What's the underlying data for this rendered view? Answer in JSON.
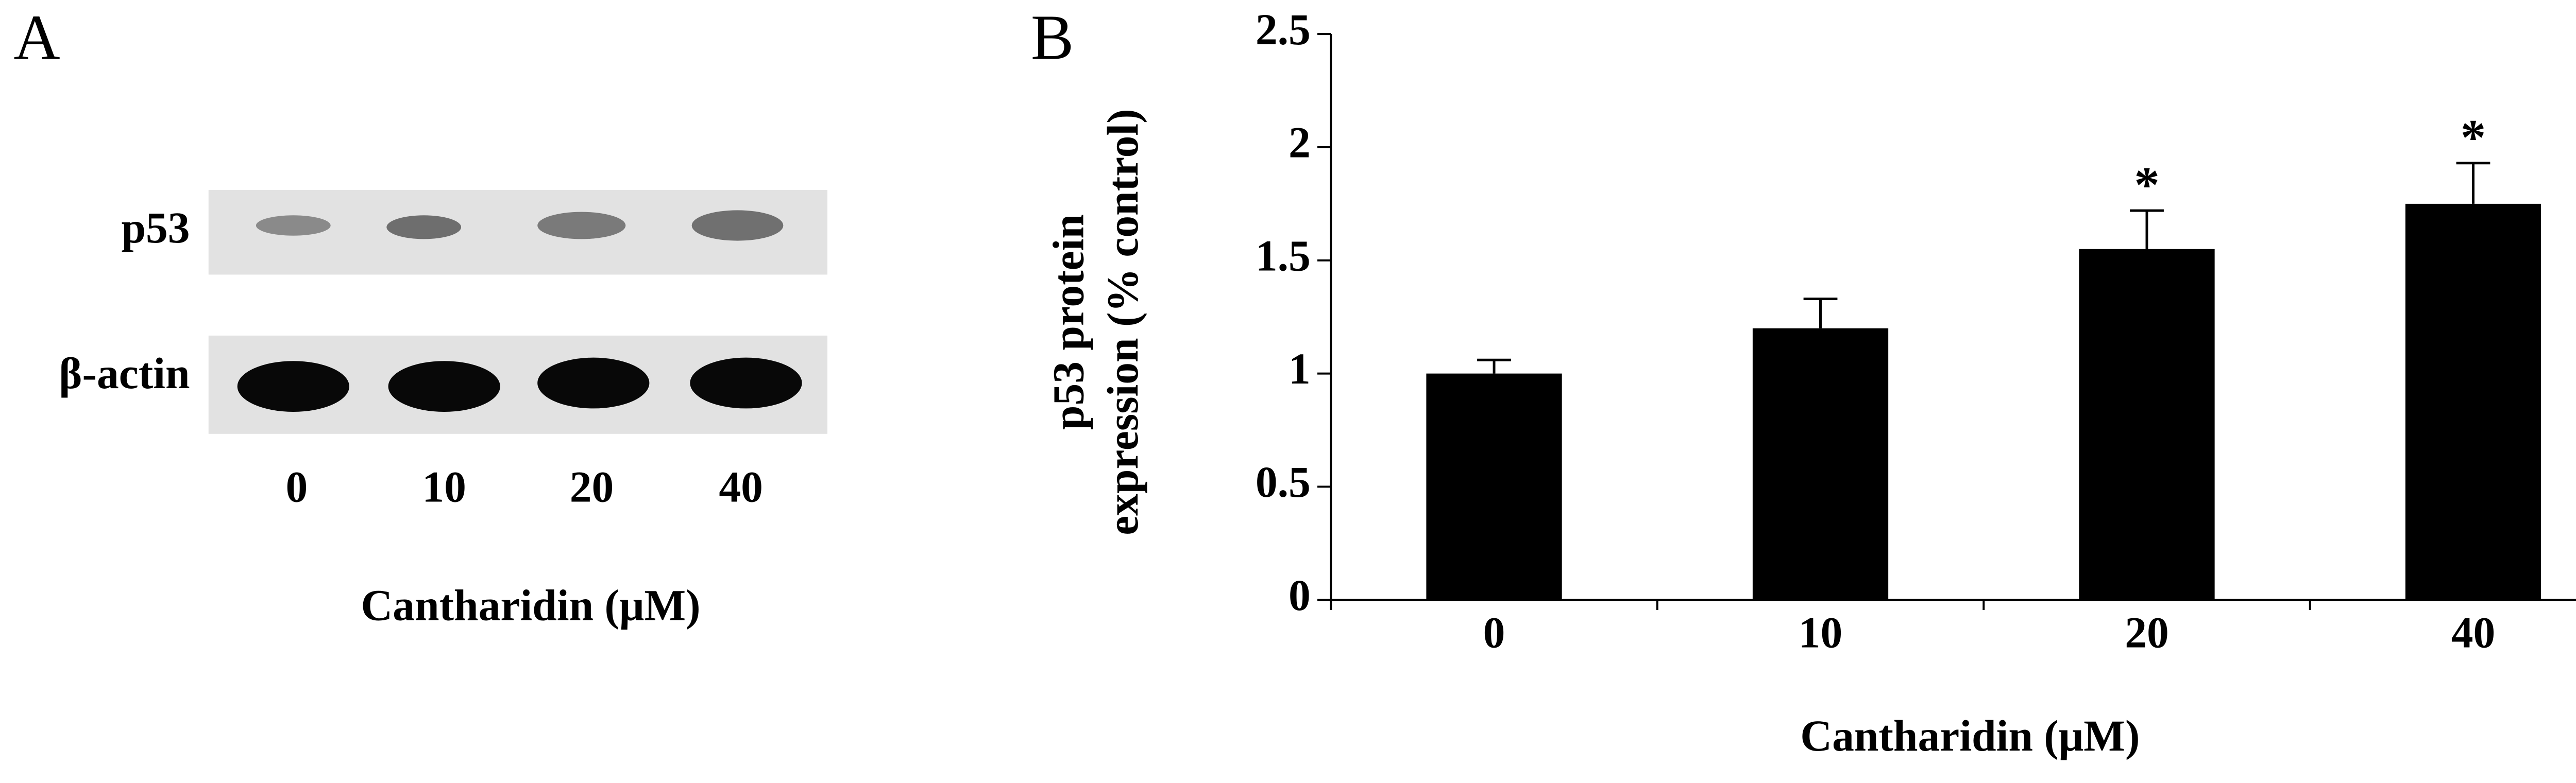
{
  "panel_a": {
    "panel_label": "A",
    "rows": [
      "p53",
      "β-actin"
    ],
    "lanes": [
      "0",
      "10",
      "20",
      "40"
    ],
    "xlabel": "Cantharidin (μM)"
  },
  "chart_data": {
    "type": "bar",
    "panel_label": "B",
    "ylabel": [
      "p53 protein",
      "expression (% control)"
    ],
    "xlabel": "Cantharidin (μM)",
    "categories": [
      "0",
      "10",
      "20",
      "40"
    ],
    "values": [
      1.0,
      1.2,
      1.55,
      1.75
    ],
    "errors": [
      0.06,
      0.13,
      0.17,
      0.18
    ],
    "significance": [
      null,
      null,
      "*",
      "*"
    ],
    "color": "#000000",
    "ylim": [
      0,
      2.5
    ],
    "yticks": [
      0,
      0.5,
      1,
      1.5,
      2,
      2.5
    ]
  }
}
